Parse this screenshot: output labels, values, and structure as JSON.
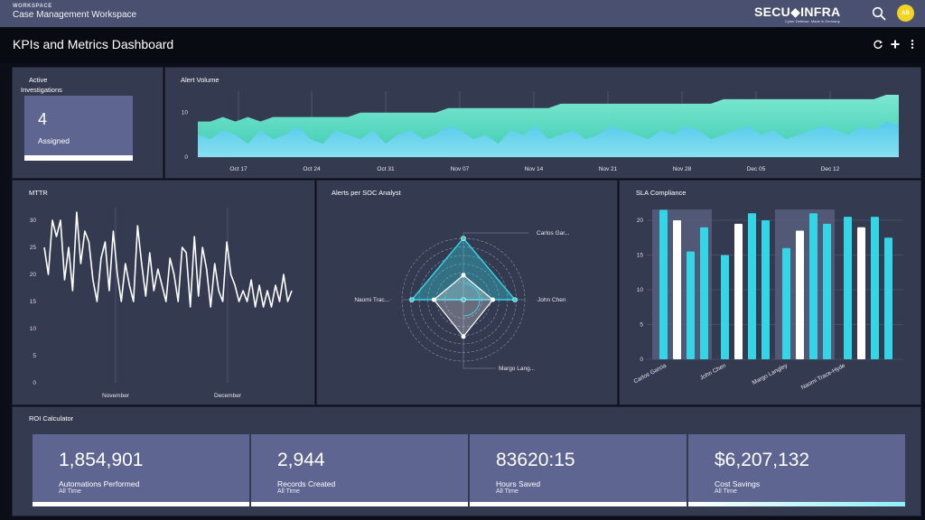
{
  "topbar": {
    "workspace_label": "WORKSPACE",
    "workspace_title": "Case Management Workspace",
    "logo_text": "SECU◆INFRA",
    "logo_tagline": "Cyber Defense. Made in Germany.",
    "avatar_initials": "AB"
  },
  "page": {
    "title": "KPIs and Metrics Dashboard"
  },
  "active_investigations": {
    "title_line1": "Active",
    "title_line2": "Investigations",
    "value": "4",
    "label": "Assigned"
  },
  "colors": {
    "panel": "#343a50",
    "card": "#5e6591",
    "cyan": "#33d6e6",
    "white": "#ffffff"
  },
  "charts": {
    "alert_volume": {
      "title": "Alert Volume",
      "y_ticks": [
        "10",
        "0"
      ],
      "x_ticks": [
        "Oct 17",
        "Oct 24",
        "Oct 31",
        "Nov 07",
        "Nov 14",
        "Nov 21",
        "Nov 28",
        "Dec 05",
        "Dec 12"
      ]
    },
    "mttr": {
      "title": "MTTR",
      "y_ticks": [
        "30",
        "25",
        "20",
        "15",
        "10",
        "5",
        "0"
      ],
      "x_ticks": [
        "November",
        "December"
      ]
    },
    "alerts_per_analyst": {
      "title": "Alerts per SOC Analyst",
      "labels": [
        "Carlos Gar...",
        "John Chen",
        "Margo Lang...",
        "Naomi Trac..."
      ]
    },
    "sla_compliance": {
      "title": "SLA Compliance",
      "y_ticks": [
        "20",
        "15",
        "10",
        "5",
        "0"
      ],
      "x_ticks": [
        "Carlos Garcia",
        "John Chen",
        "Margo Langley",
        "Naomi Trace-Hyde"
      ]
    }
  },
  "chart_data": [
    {
      "type": "area",
      "title": "Alert Volume",
      "ylim": [
        0,
        14
      ],
      "x_labels": [
        "Oct 17",
        "Oct 24",
        "Oct 31",
        "Nov 07",
        "Nov 14",
        "Nov 21",
        "Nov 28",
        "Dec 05",
        "Dec 12"
      ],
      "series": [
        {
          "name": "",
          "values": [
            8,
            8,
            9,
            8,
            9,
            8,
            9,
            9,
            9,
            9,
            9,
            9,
            9,
            10,
            10,
            10,
            10,
            10,
            10,
            10,
            11,
            11,
            11,
            11,
            11,
            11,
            11,
            11,
            11,
            12,
            12,
            12,
            12,
            12,
            12,
            12,
            12,
            12,
            12,
            12,
            12,
            12,
            13,
            13,
            13,
            13,
            13,
            13,
            13,
            13,
            13,
            13,
            13,
            13,
            13,
            14,
            14
          ]
        },
        {
          "name": "",
          "values": [
            5,
            4,
            6,
            5,
            3,
            6,
            4,
            5,
            7,
            4,
            3,
            6,
            5,
            4,
            6,
            3,
            5,
            6,
            4,
            5,
            7,
            6,
            4,
            5,
            3,
            6,
            5,
            7,
            4,
            5,
            6,
            4,
            5,
            7,
            6,
            5,
            4,
            6,
            5,
            7,
            6,
            4,
            5,
            6,
            7,
            5,
            6,
            4,
            5,
            6,
            7,
            6,
            5,
            7,
            6,
            8,
            7
          ]
        }
      ]
    },
    {
      "type": "line",
      "title": "MTTR",
      "ylim": [
        0,
        32
      ],
      "x_labels": [
        "November",
        "December"
      ],
      "series": [
        {
          "name": "",
          "values": [
            25,
            20,
            30,
            27,
            30,
            19,
            25,
            17,
            32,
            22,
            28,
            26,
            19,
            15,
            23,
            26,
            17,
            28,
            20,
            15,
            22,
            18,
            15,
            29,
            22,
            16,
            24,
            17,
            21,
            18,
            15,
            23,
            20,
            15,
            25,
            24,
            14,
            27,
            16,
            25,
            21,
            14,
            22,
            17,
            15,
            26,
            20,
            18,
            15,
            17,
            15,
            19,
            14,
            18,
            14,
            17,
            14,
            18,
            15,
            20,
            15,
            17
          ]
        }
      ]
    },
    {
      "type": "radar",
      "title": "Alerts per SOC Analyst",
      "axes": [
        "Carlos Gar...",
        "John Chen",
        "Margo Lang...",
        "Naomi Trac..."
      ],
      "series": [
        {
          "name": "",
          "values": [
            10,
            7,
            0,
            7
          ]
        },
        {
          "name": "",
          "values": [
            4,
            4,
            6,
            4
          ]
        }
      ]
    },
    {
      "type": "bar",
      "title": "SLA Compliance",
      "categories": [
        "Carlos Garcia",
        "John Chen",
        "Margo Langley",
        "Naomi Trace-Hyde"
      ],
      "ylim": [
        0,
        22
      ],
      "bars": [
        21.5,
        20,
        15.5,
        19,
        15,
        19.5,
        21,
        20,
        16,
        18.5,
        21,
        19.5,
        20.5,
        19,
        20.5,
        17.5
      ],
      "bar_colors": [
        "cyan",
        "white",
        "cyan",
        "cyan",
        "cyan",
        "white",
        "cyan",
        "cyan",
        "cyan",
        "white",
        "cyan",
        "cyan",
        "cyan",
        "white",
        "cyan",
        "cyan"
      ]
    }
  ],
  "roi": {
    "title": "ROI Calculator",
    "cards": [
      {
        "value": "1,854,901",
        "label": "Automations Performed",
        "sub": "All Time"
      },
      {
        "value": "2,944",
        "label": "Records Created",
        "sub": "All Time"
      },
      {
        "value": "83620:15",
        "label": "Hours Saved",
        "sub": "All Time"
      },
      {
        "value": "$6,207,132",
        "label": "Cost Savings",
        "sub": "All Time"
      }
    ]
  }
}
